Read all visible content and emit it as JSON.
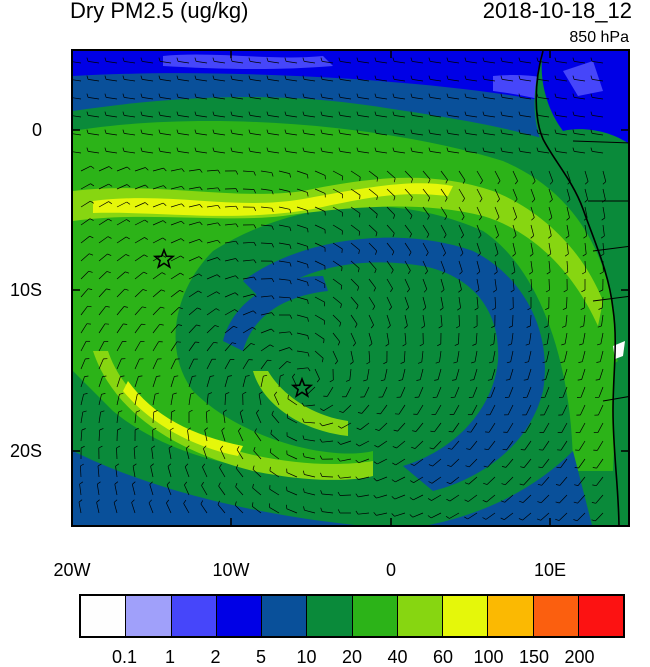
{
  "header": {
    "title": "Dry PM2.5 (ug/kg)",
    "datetime": "2018-10-18_12",
    "level": "850 hPa"
  },
  "map": {
    "lat_ticks": [
      "0",
      "10S",
      "20S"
    ],
    "lon_ticks": [
      "20W",
      "10W",
      "0",
      "10E"
    ],
    "markers": [
      "star-icon",
      "star-icon"
    ],
    "coastline_color": "#000000"
  },
  "colorbar": {
    "colors": [
      "#fefefe",
      "#a0a0fa",
      "#4646fa",
      "#0000e6",
      "#09509a",
      "#0a8a3a",
      "#2cb318",
      "#87d611",
      "#e5f70a",
      "#fbb902",
      "#fb5f0f",
      "#fc1212"
    ],
    "labels": [
      "0.1",
      "1",
      "2",
      "5",
      "10",
      "20",
      "40",
      "60",
      "100",
      "150",
      "200"
    ]
  }
}
